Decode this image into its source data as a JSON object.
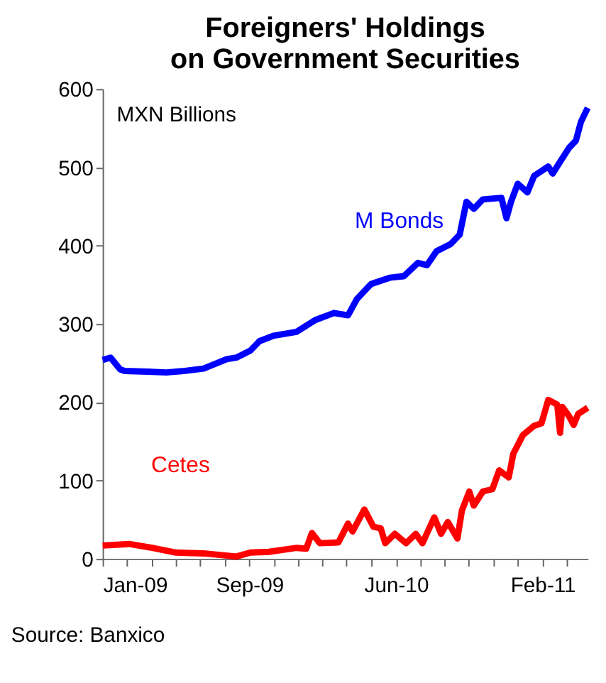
{
  "chart_data": {
    "type": "line",
    "title": "Foreigners' Holdings\non Government Securities",
    "annotations": [
      "MXN Billions",
      "Source: Banxico"
    ],
    "xlim": [
      "2009-01-02",
      "2011-05-12"
    ],
    "xticks": [
      {
        "value": "2009-01-02",
        "label": "Jan-09"
      },
      {
        "value": "2009-02-14",
        "label": null
      },
      {
        "value": "2009-03-29",
        "label": null
      },
      {
        "value": "2009-05-12",
        "label": null
      },
      {
        "value": "2009-06-24",
        "label": null
      },
      {
        "value": "2009-08-06",
        "label": null
      },
      {
        "value": "2009-09-19",
        "label": "Sep-09"
      },
      {
        "value": "2009-11-01",
        "label": null
      },
      {
        "value": "2009-12-14",
        "label": null
      },
      {
        "value": "2010-01-26",
        "label": null
      },
      {
        "value": "2010-03-10",
        "label": null
      },
      {
        "value": "2010-04-22",
        "label": null
      },
      {
        "value": "2010-06-06",
        "label": "Jun-10"
      },
      {
        "value": "2010-07-19",
        "label": null
      },
      {
        "value": "2010-08-31",
        "label": null
      },
      {
        "value": "2010-10-13",
        "label": null
      },
      {
        "value": "2010-11-25",
        "label": null
      },
      {
        "value": "2011-01-07",
        "label": null
      },
      {
        "value": "2011-02-21",
        "label": "Feb-11"
      },
      {
        "value": "2011-04-05",
        "label": null
      }
    ],
    "ylim": [
      0,
      600
    ],
    "yticks": [
      0,
      100,
      200,
      300,
      400,
      500,
      600
    ],
    "grid": false,
    "legend": false,
    "marker": "none",
    "line_style": "solid",
    "series": [
      {
        "name": "M Bonds",
        "color": "#0000ff",
        "x": [
          "2009-01-02",
          "2009-01-16",
          "2009-02-02",
          "2009-02-10",
          "2009-03-23",
          "2009-04-25",
          "2009-05-28",
          "2009-06-30",
          "2009-08-10",
          "2009-08-27",
          "2009-09-21",
          "2009-10-07",
          "2009-11-01",
          "2009-12-12",
          "2010-01-14",
          "2010-02-16",
          "2010-03-13",
          "2010-03-29",
          "2010-04-23",
          "2010-05-26",
          "2010-06-20",
          "2010-07-15",
          "2010-07-31",
          "2010-08-17",
          "2010-09-11",
          "2010-09-27",
          "2010-10-09",
          "2010-10-22",
          "2010-11-07",
          "2010-12-10",
          "2010-12-19",
          "2010-12-27",
          "2011-01-08",
          "2011-01-25",
          "2011-02-06",
          "2011-03-03",
          "2011-03-11",
          "2011-03-24",
          "2011-04-09",
          "2011-04-21",
          "2011-04-30",
          "2011-05-12"
        ],
        "values": [
          254,
          257,
          242,
          240,
          239,
          238,
          240,
          243,
          255,
          257,
          266,
          278,
          285,
          290,
          305,
          314,
          311,
          332,
          351,
          359,
          361,
          378,
          375,
          393,
          402,
          414,
          456,
          447,
          459,
          461,
          435,
          456,
          479,
          468,
          489,
          501,
          492,
          507,
          525,
          534,
          558,
          576
        ]
      },
      {
        "name": "Cetes",
        "color": "#ff0000",
        "x": [
          "2009-01-02",
          "2009-02-18",
          "2009-03-31",
          "2009-05-12",
          "2009-06-30",
          "2009-08-27",
          "2009-09-21",
          "2009-10-24",
          "2009-12-12",
          "2009-12-29",
          "2010-01-08",
          "2010-01-22",
          "2010-02-24",
          "2010-03-13",
          "2010-03-21",
          "2010-04-11",
          "2010-04-27",
          "2010-05-10",
          "2010-05-18",
          "2010-06-04",
          "2010-06-24",
          "2010-07-11",
          "2010-07-23",
          "2010-08-13",
          "2010-08-25",
          "2010-09-06",
          "2010-09-23",
          "2010-10-01",
          "2010-10-14",
          "2010-10-22",
          "2010-11-07",
          "2010-11-24",
          "2010-12-06",
          "2010-12-23",
          "2010-12-31",
          "2011-01-17",
          "2011-02-06",
          "2011-02-19",
          "2011-03-03",
          "2011-03-19",
          "2011-03-24",
          "2011-03-28",
          "2011-04-09",
          "2011-04-17",
          "2011-04-25",
          "2011-05-12"
        ],
        "values": [
          17,
          19,
          14,
          8,
          7,
          3,
          8,
          9,
          14,
          13,
          33,
          20,
          21,
          45,
          35,
          63,
          41,
          39,
          20,
          32,
          20,
          32,
          20,
          53,
          32,
          47,
          26,
          62,
          86,
          68,
          86,
          89,
          113,
          104,
          134,
          158,
          170,
          173,
          203,
          197,
          161,
          194,
          182,
          171,
          185,
          193
        ]
      }
    ]
  }
}
